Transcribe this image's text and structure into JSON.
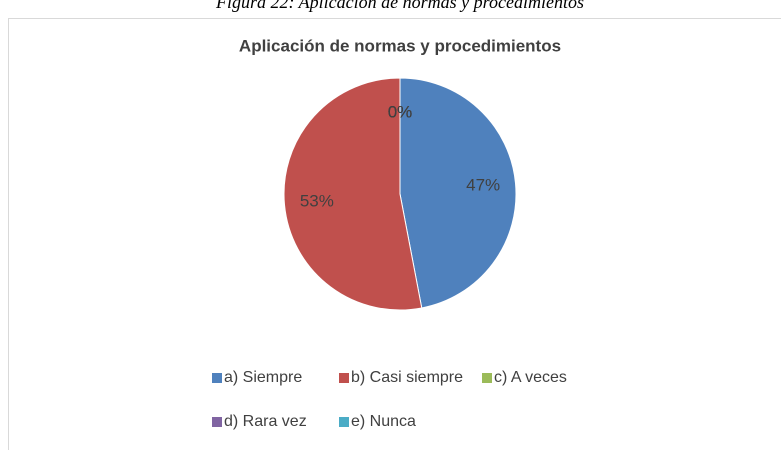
{
  "caption": "Figura 22: Aplicación de normas y procedimientos",
  "chart_data": {
    "type": "pie",
    "title": "Aplicación de normas y procedimientos",
    "categories": [
      "a) Siempre",
      "b) Casi siempre",
      "c) A veces",
      "d) Rara vez",
      "e) Nunca"
    ],
    "values": [
      47,
      53,
      0,
      0,
      0
    ],
    "value_labels": [
      "47%",
      "53%",
      "0%",
      "0%",
      "0%"
    ],
    "colors": [
      "#4f81bd",
      "#c0504d",
      "#9bbb59",
      "#8064a2",
      "#4bacc6"
    ],
    "legend": "bottom"
  }
}
